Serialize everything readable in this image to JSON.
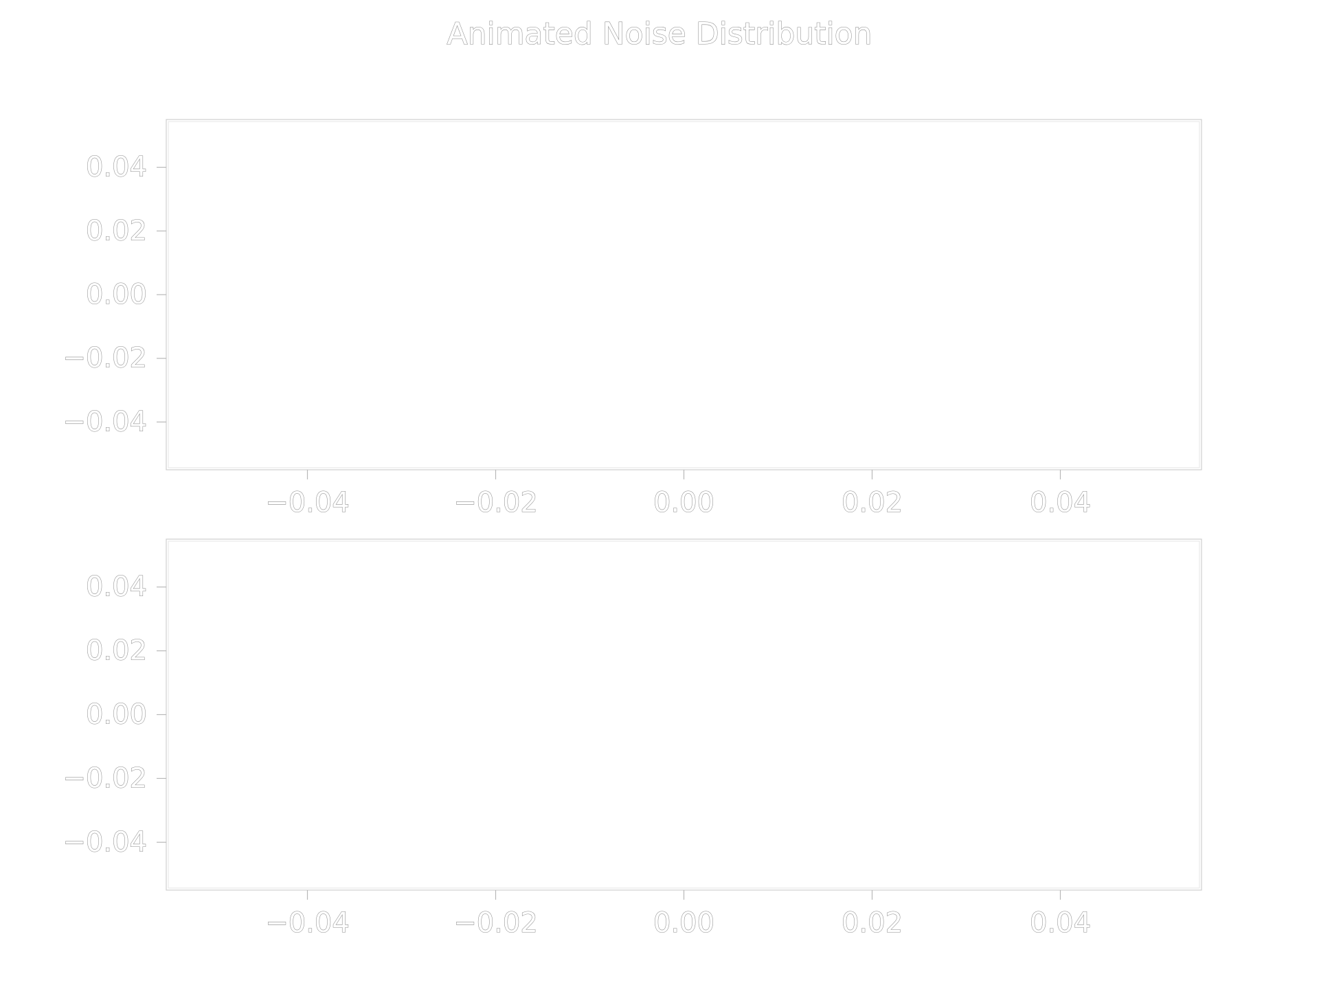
{
  "chart_data": {
    "title": "Animated Noise Distribution",
    "panels": [
      {
        "type": "scatter",
        "title": "",
        "xlabel": "",
        "ylabel": "",
        "xlim": [
          -0.055,
          0.055
        ],
        "ylim": [
          -0.055,
          0.055
        ],
        "x_ticks": [
          -0.04,
          -0.02,
          0.0,
          0.02,
          0.04
        ],
        "y_ticks": [
          0.04,
          0.02,
          0.0,
          -0.02,
          -0.04
        ],
        "x_tick_labels": [
          "−0.04",
          "−0.02",
          "0.00",
          "0.02",
          "0.04"
        ],
        "y_tick_labels": [
          "0.04",
          "0.02",
          "0.00",
          "−0.02",
          "−0.04"
        ],
        "series": [],
        "grid": false
      },
      {
        "type": "scatter",
        "title": "",
        "xlabel": "",
        "ylabel": "",
        "xlim": [
          -0.055,
          0.055
        ],
        "ylim": [
          -0.055,
          0.055
        ],
        "x_ticks": [
          -0.04,
          -0.02,
          0.0,
          0.02,
          0.04
        ],
        "y_ticks": [
          0.04,
          0.02,
          0.0,
          -0.02,
          -0.04
        ],
        "x_tick_labels": [
          "−0.04",
          "−0.02",
          "0.00",
          "0.02",
          "0.04"
        ],
        "y_tick_labels": [
          "0.04",
          "0.02",
          "0.00",
          "−0.02",
          "−0.04"
        ],
        "series": [],
        "grid": false
      }
    ]
  }
}
